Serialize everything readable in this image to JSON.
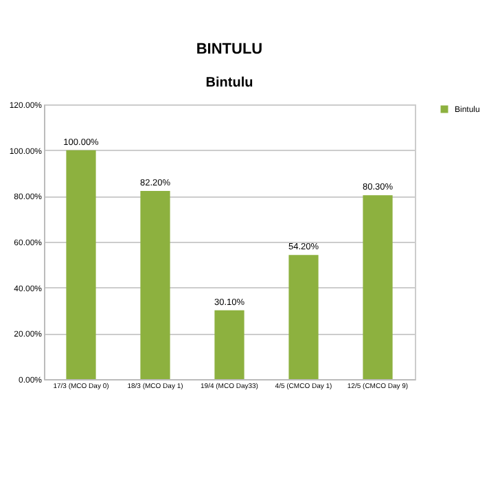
{
  "chart_data": {
    "type": "bar",
    "title": "BINTULU",
    "subtitle": "Bintulu",
    "categories": [
      "17/3 (MCO Day 0)",
      "18/3 (MCO Day 1)",
      "19/4 (MCO Day33)",
      "4/5 (CMCO Day 1)",
      "12/5 (CMCO Day 9)"
    ],
    "series": [
      {
        "name": "Bintulu",
        "color": "#8db13f",
        "values": [
          100,
          82.2,
          30.1,
          54.2,
          80.3
        ],
        "value_labels": [
          "100.00%",
          "82.20%",
          "30.10%",
          "54.20%",
          "80.30%"
        ]
      }
    ],
    "ylim": [
      0,
      120
    ],
    "yticks": [
      {
        "value": 0,
        "label": "0.00%"
      },
      {
        "value": 20,
        "label": "20.00%"
      },
      {
        "value": 40,
        "label": "40.00%"
      },
      {
        "value": 60,
        "label": "60.00%"
      },
      {
        "value": 80,
        "label": "80.00%"
      },
      {
        "value": 100,
        "label": "100.00%"
      },
      {
        "value": 120,
        "label": "120.00%"
      }
    ],
    "grid": "y",
    "legend": "right"
  }
}
